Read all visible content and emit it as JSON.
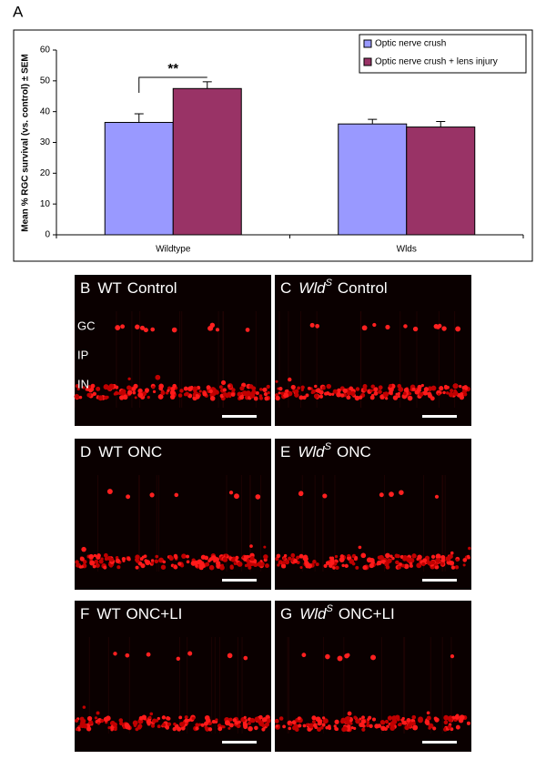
{
  "figure_label": "A",
  "chart_data": {
    "type": "bar",
    "categories": [
      "Wildtype",
      "Wlds"
    ],
    "series": [
      {
        "name": "Optic nerve crush",
        "color": "#9999ff",
        "values": [
          36.5,
          36
        ],
        "errors": [
          2.8,
          1.5
        ]
      },
      {
        "name": "Optic nerve crush + lens injury",
        "color": "#993366",
        "values": [
          47.5,
          35
        ],
        "errors": [
          2.2,
          1.8
        ]
      }
    ],
    "y_label": "Mean % RGC survival (vs. control) ± SEM",
    "ylim": [
      0,
      60
    ],
    "yticks": [
      0,
      10,
      20,
      30,
      40,
      50,
      60
    ],
    "annotation": "**",
    "legend": "upper right"
  },
  "panels": [
    {
      "letter": "B",
      "strain": "WT",
      "condition": "Control",
      "layers": [
        "GC",
        "IP",
        "IN"
      ]
    },
    {
      "letter": "C",
      "strain": "Wld",
      "strain_superscript": "S",
      "condition": "Control"
    },
    {
      "letter": "D",
      "strain": "WT",
      "condition": "ONC"
    },
    {
      "letter": "E",
      "strain": "Wld",
      "strain_superscript": "S",
      "condition": "ONC"
    },
    {
      "letter": "F",
      "strain": "WT",
      "condition": "ONC+LI"
    },
    {
      "letter": "G",
      "strain": "Wld",
      "strain_superscript": "S",
      "condition": "ONC+LI"
    }
  ]
}
